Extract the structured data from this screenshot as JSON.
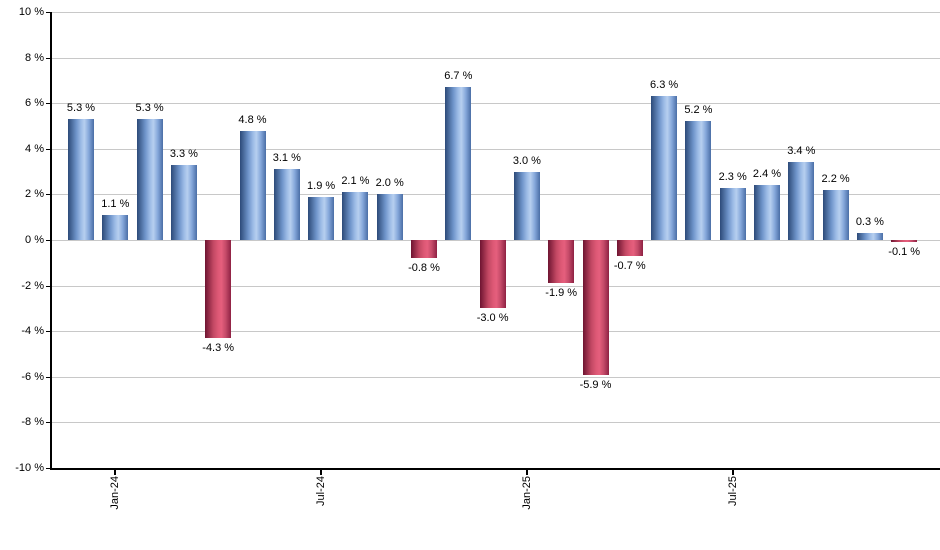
{
  "chart_data": {
    "type": "bar",
    "title": "",
    "xlabel": "",
    "ylabel": "",
    "values": [
      5.3,
      1.1,
      5.3,
      3.3,
      -4.3,
      4.8,
      3.1,
      1.9,
      2.1,
      2.0,
      -0.8,
      6.7,
      -3.0,
      3.0,
      -1.9,
      -5.9,
      -0.7,
      6.3,
      5.2,
      2.3,
      2.4,
      3.4,
      2.2,
      0.3,
      -0.1
    ],
    "bar_labels": [
      "5.3 %",
      "1.1 %",
      "5.3 %",
      "3.3 %",
      "-4.3 %",
      "4.8 %",
      "3.1 %",
      "1.9 %",
      "2.1 %",
      "2.0 %",
      "-0.8 %",
      "6.7 %",
      "-3.0 %",
      "3.0 %",
      "-1.9 %",
      "-5.9 %",
      "-0.7 %",
      "6.3 %",
      "5.2 %",
      "2.3 %",
      "2.4 %",
      "3.4 %",
      "2.2 %",
      "0.3 %",
      "-0.1 %"
    ],
    "ylim": [
      -10,
      10
    ],
    "y_tick_step": 2,
    "y_tick_labels": [
      "10 %",
      "8 %",
      "6 %",
      "4 %",
      "2 %",
      "0 %",
      "-2 %",
      "-4 %",
      "-6 %",
      "-8 %",
      "-10 %"
    ],
    "x_tick_labels": [
      "Jan-24",
      "Jul-24",
      "Jan-25",
      "Jul-25"
    ],
    "x_tick_indices": [
      1,
      7,
      13,
      19
    ],
    "grid": "horizontal",
    "legend": "none",
    "colors": {
      "positive_edge_dark": "#2c4a78",
      "positive_highlight": "#b7cfef",
      "positive_edge_right": "#4a6ea6",
      "negative_edge_dark": "#6e1431",
      "negative_highlight": "#e55f7d",
      "negative_edge_right": "#8e2143",
      "gridline": "#c8c8c8",
      "axis": "#000000",
      "background": "#ffffff"
    }
  }
}
